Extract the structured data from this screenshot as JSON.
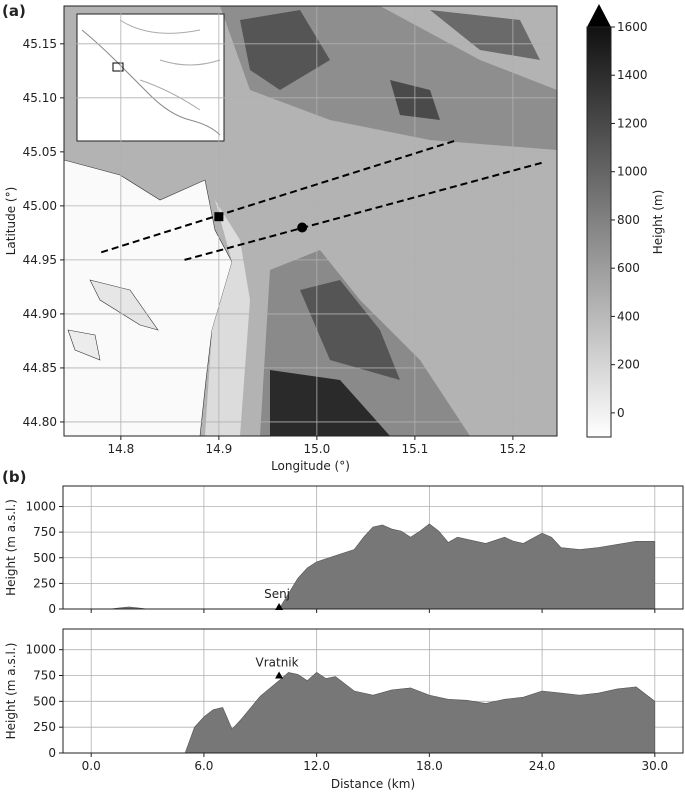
{
  "chart_data": [
    {
      "type": "map",
      "panel_label": "(a)",
      "xlabel": "Longitude (°)",
      "ylabel": "Latitude (°)",
      "xlim": [
        14.742,
        15.245
      ],
      "ylim": [
        44.787,
        45.185
      ],
      "xticks": [
        14.8,
        14.9,
        {
          "value": 15.0,
          "label": "15.0"
        },
        15.1,
        15.2
      ],
      "yticks": [
        {
          "value": 44.8,
          "label": "44.80"
        },
        44.85,
        {
          "value": 44.9,
          "label": "44.90"
        },
        44.95,
        {
          "value": 45.0,
          "label": "45.00"
        },
        45.05,
        {
          "value": 45.1,
          "label": "45.10"
        },
        45.15
      ],
      "grid": true,
      "transects": [
        {
          "lon": [
            14.78,
            15.14
          ],
          "lat": [
            44.957,
            45.06
          ]
        },
        {
          "lon": [
            14.865,
            15.23
          ],
          "lat": [
            44.95,
            45.04
          ]
        }
      ],
      "points": [
        {
          "marker": "square",
          "lon": 14.9,
          "lat": 44.99
        },
        {
          "marker": "circle",
          "lon": 14.985,
          "lat": 44.98
        }
      ],
      "colorbar": {
        "label": "Height (m)",
        "clim": [
          -100,
          1600
        ],
        "ticks": [
          0,
          200,
          400,
          600,
          800,
          1000,
          1200,
          1400,
          1600
        ]
      }
    },
    {
      "type": "area",
      "panel_label": "(b)",
      "ylabel": "Height (m a.s.l.)",
      "color": "#777777",
      "xlim": [
        -1.5,
        31.5
      ],
      "ylim": [
        0,
        1200
      ],
      "xticks": [
        0,
        6,
        12,
        18,
        24,
        30
      ],
      "yticks": [
        0,
        250,
        500,
        750,
        1000
      ],
      "grid": true,
      "x": [
        0,
        1,
        1.5,
        2,
        2.5,
        3,
        5,
        8,
        10,
        10.5,
        11,
        11.5,
        12,
        13,
        14,
        14.5,
        15,
        15.5,
        16,
        16.5,
        17,
        17.5,
        18,
        18.5,
        19,
        19.5,
        20,
        21,
        22,
        22.5,
        23,
        23.5,
        24,
        24.5,
        25,
        26,
        27,
        28,
        29,
        30
      ],
      "values": [
        0,
        0,
        10,
        20,
        10,
        0,
        0,
        0,
        0,
        150,
        300,
        400,
        460,
        520,
        580,
        700,
        800,
        820,
        780,
        760,
        700,
        760,
        830,
        760,
        650,
        700,
        680,
        640,
        700,
        660,
        640,
        690,
        740,
        700,
        600,
        580,
        600,
        630,
        660,
        660
      ],
      "annotations": [
        {
          "text": "Senj",
          "x": 10,
          "y": 20
        }
      ]
    },
    {
      "type": "area",
      "xlabel": "Distance (km)",
      "ylabel": "Height (m a.s.l.)",
      "color": "#777777",
      "xlim": [
        -1.5,
        31.5
      ],
      "ylim": [
        0,
        1200
      ],
      "xticks": [
        {
          "value": 0,
          "label": "0.0"
        },
        {
          "value": 6,
          "label": "6.0"
        },
        {
          "value": 12,
          "label": "12.0"
        },
        {
          "value": 18,
          "label": "18.0"
        },
        {
          "value": 24,
          "label": "24.0"
        },
        {
          "value": 30,
          "label": "30.0"
        }
      ],
      "yticks": [
        0,
        250,
        500,
        750,
        1000
      ],
      "grid": true,
      "x": [
        0,
        5,
        5.5,
        6,
        6.5,
        7,
        7.5,
        8,
        9,
        10,
        10.5,
        11,
        11.5,
        12,
        12.5,
        13,
        14,
        15,
        16,
        17,
        18,
        19,
        20,
        21,
        22,
        23,
        24,
        25,
        26,
        27,
        28,
        29,
        30
      ],
      "values": [
        0,
        0,
        250,
        350,
        420,
        440,
        230,
        330,
        550,
        700,
        780,
        760,
        700,
        780,
        720,
        740,
        600,
        560,
        610,
        630,
        560,
        520,
        510,
        480,
        520,
        540,
        600,
        580,
        560,
        580,
        620,
        640,
        500
      ],
      "annotations": [
        {
          "text": "Vratnik",
          "x": 10,
          "y": 750
        }
      ]
    }
  ]
}
